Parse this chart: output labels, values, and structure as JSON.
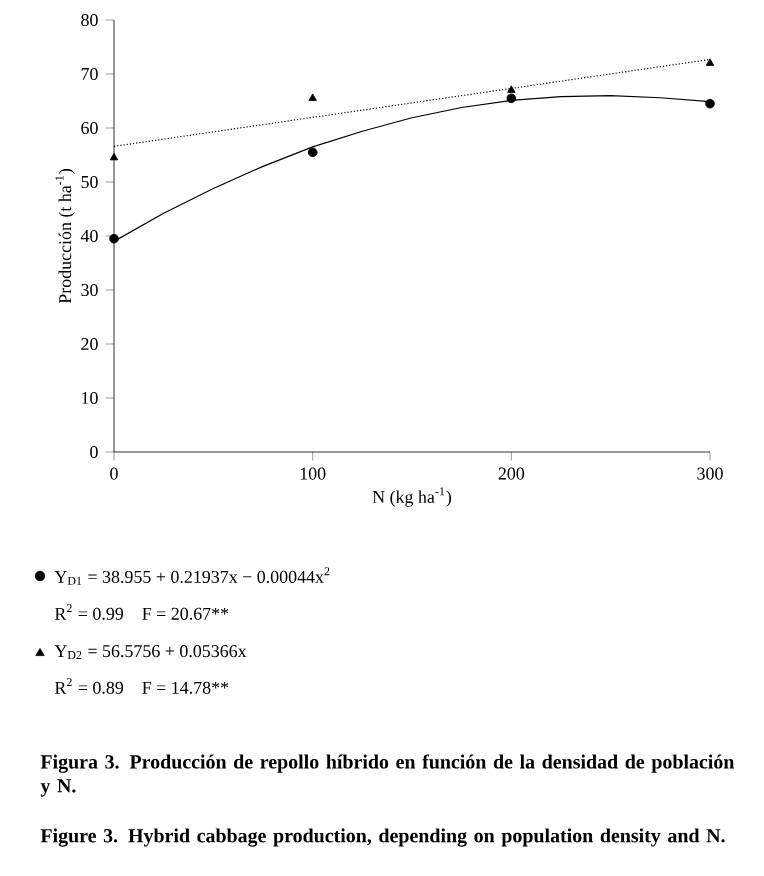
{
  "chart_data": {
    "type": "scatter",
    "xlabel": "N (kg ha$^{-1}$)",
    "ylabel": "Producción (t ha$^{-1}$)",
    "xlim": [
      0,
      300
    ],
    "xticks": [
      0,
      100,
      200,
      300
    ],
    "ylim": [
      0,
      80
    ],
    "yticks": [
      0,
      10,
      20,
      30,
      40,
      50,
      60,
      70,
      80
    ],
    "grid": false,
    "series": [
      {
        "type": "scatter",
        "marker": "circle",
        "color": "#000000",
        "x": [
          0,
          100,
          200,
          300
        ],
        "values": [
          39.5,
          55.5,
          65.5,
          64.5
        ]
      },
      {
        "type": "scatter",
        "marker": "triangle",
        "color": "#000000",
        "x": [
          0,
          100,
          200,
          300
        ],
        "values": [
          54.5,
          65.5,
          67,
          72
        ]
      },
      {
        "type": "line",
        "marker": "none",
        "line_style": "solid",
        "color": "#000000",
        "x": [
          0,
          25,
          50,
          75,
          100,
          125,
          150,
          175,
          200,
          225,
          250,
          275,
          300
        ],
        "values": [
          39,
          44.2,
          48.8,
          52.9,
          56.5,
          59.4,
          61.9,
          63.8,
          65.1,
          65.8,
          66,
          65.6,
          64.9
        ]
      },
      {
        "type": "line",
        "marker": "none",
        "line_style": "dotted",
        "color": "#000000",
        "x": [
          0,
          300
        ],
        "values": [
          56.6,
          72.7
        ]
      }
    ],
    "annotations": [
      "Y$_{D1}$ = 38.955 + 0.21937x − 0.00044x$^{2}$",
      "R$^{2}$ = 0.99    F = 20.67**",
      "Y$_{D2}$ = 56.5756 + 0.05366x",
      "R$^{2}$ = 0.89    F = 14.78**",
      "Figura 3. Producción de repollo híbrido en función de la densidad de población y N.",
      "Figure 3. Hybrid cabbage production, depending on population density and N."
    ]
  }
}
